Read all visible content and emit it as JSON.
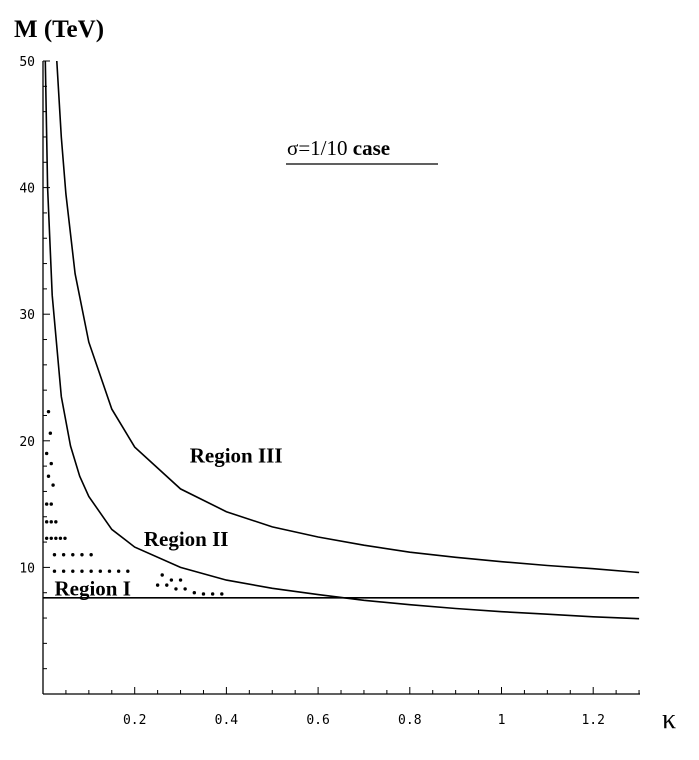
{
  "chart_data": {
    "type": "line",
    "title": "",
    "ylabel": "M (TeV)",
    "xlabel": "κ",
    "annotation": {
      "sigma_part": "σ=1/10",
      "case_part": " case"
    },
    "xlim": [
      0,
      1.3
    ],
    "ylim": [
      0,
      50
    ],
    "x_ticks": [
      {
        "value": 0.2,
        "label": "0.2"
      },
      {
        "value": 0.4,
        "label": "0.4"
      },
      {
        "value": 0.6,
        "label": "0.6"
      },
      {
        "value": 0.8,
        "label": "0.8"
      },
      {
        "value": 1.0,
        "label": "1"
      },
      {
        "value": 1.2,
        "label": "1.2"
      }
    ],
    "y_ticks": [
      {
        "value": 10,
        "label": "10"
      },
      {
        "value": 20,
        "label": "20"
      },
      {
        "value": 30,
        "label": "30"
      },
      {
        "value": 40,
        "label": "40"
      },
      {
        "value": 50,
        "label": "50"
      }
    ],
    "grid": false,
    "series": [
      {
        "points": [
          [
            0.005,
            50
          ],
          [
            0.01,
            40
          ],
          [
            0.02,
            31.5
          ],
          [
            0.04,
            23.5
          ],
          [
            0.06,
            19.6
          ],
          [
            0.08,
            17.2
          ],
          [
            0.1,
            15.6
          ],
          [
            0.15,
            13.0
          ],
          [
            0.2,
            11.6
          ],
          [
            0.3,
            10.0
          ],
          [
            0.4,
            9.0
          ],
          [
            0.5,
            8.35
          ],
          [
            0.6,
            7.85
          ],
          [
            0.7,
            7.4
          ],
          [
            0.8,
            7.05
          ],
          [
            0.9,
            6.75
          ],
          [
            1.0,
            6.5
          ],
          [
            1.1,
            6.3
          ],
          [
            1.2,
            6.1
          ],
          [
            1.3,
            5.95
          ]
        ]
      },
      {
        "points": [
          [
            0.03,
            50
          ],
          [
            0.04,
            44
          ],
          [
            0.05,
            39.5
          ],
          [
            0.07,
            33.2
          ],
          [
            0.1,
            27.8
          ],
          [
            0.15,
            22.5
          ],
          [
            0.2,
            19.5
          ],
          [
            0.3,
            16.2
          ],
          [
            0.4,
            14.4
          ],
          [
            0.5,
            13.2
          ],
          [
            0.6,
            12.4
          ],
          [
            0.7,
            11.75
          ],
          [
            0.8,
            11.2
          ],
          [
            0.9,
            10.8
          ],
          [
            1.0,
            10.45
          ],
          [
            1.1,
            10.15
          ],
          [
            1.2,
            9.9
          ],
          [
            1.3,
            9.6
          ]
        ]
      },
      {
        "points": [
          [
            0,
            7.6
          ],
          [
            1.3,
            7.6
          ]
        ]
      }
    ],
    "regions": [
      {
        "label": "Region I",
        "x": 0.025,
        "y": 7.8
      },
      {
        "label": "Region II",
        "x": 0.22,
        "y": 11.7
      },
      {
        "label": "Region III",
        "x": 0.32,
        "y": 18.3
      }
    ],
    "dots": [
      [
        0.012,
        22.3
      ],
      [
        0.016,
        20.6
      ],
      [
        0.008,
        19.0
      ],
      [
        0.018,
        18.2
      ],
      [
        0.012,
        17.2
      ],
      [
        0.022,
        16.5
      ],
      [
        0.008,
        15.0
      ],
      [
        0.018,
        15.0
      ],
      [
        0.008,
        13.6
      ],
      [
        0.018,
        13.6
      ],
      [
        0.028,
        13.6
      ],
      [
        0.008,
        12.3
      ],
      [
        0.018,
        12.3
      ],
      [
        0.028,
        12.3
      ],
      [
        0.038,
        12.3
      ],
      [
        0.048,
        12.3
      ],
      [
        0.025,
        11.0
      ],
      [
        0.045,
        11.0
      ],
      [
        0.065,
        11.0
      ],
      [
        0.085,
        11.0
      ],
      [
        0.105,
        11.0
      ],
      [
        0.025,
        9.7
      ],
      [
        0.045,
        9.7
      ],
      [
        0.065,
        9.7
      ],
      [
        0.085,
        9.7
      ],
      [
        0.105,
        9.7
      ],
      [
        0.125,
        9.7
      ],
      [
        0.145,
        9.7
      ],
      [
        0.165,
        9.7
      ],
      [
        0.185,
        9.7
      ],
      [
        0.26,
        9.4
      ],
      [
        0.28,
        9.0
      ],
      [
        0.3,
        9.0
      ],
      [
        0.25,
        8.6
      ],
      [
        0.27,
        8.6
      ],
      [
        0.29,
        8.3
      ],
      [
        0.31,
        8.3
      ],
      [
        0.33,
        8.0
      ],
      [
        0.35,
        7.9
      ],
      [
        0.37,
        7.9
      ],
      [
        0.39,
        7.9
      ]
    ]
  }
}
